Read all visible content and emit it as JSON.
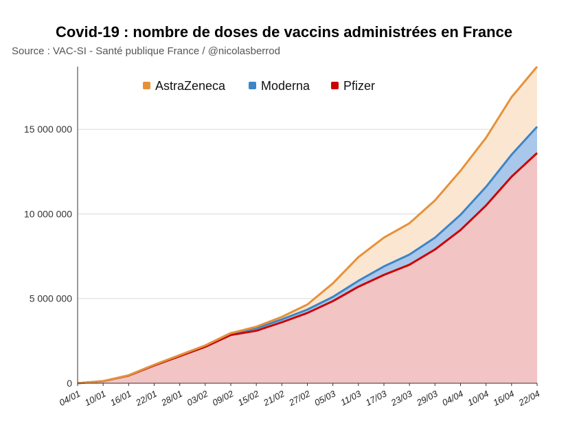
{
  "chart_data": {
    "type": "area",
    "title": "Covid-19 : nombre de doses de vaccins administrées en France",
    "subtitle": "Source : VAC-SI - Santé publique France / @nicolasberrod",
    "xlabel": "",
    "ylabel": "",
    "stacked": true,
    "ylim": [
      0,
      18700000
    ],
    "y_ticks": [
      0,
      5000000,
      10000000,
      15000000
    ],
    "y_tick_labels": [
      "0",
      "5 000 000",
      "10 000 000",
      "15 000 000"
    ],
    "categories": [
      "04/01",
      "10/01",
      "16/01",
      "22/01",
      "28/01",
      "03/02",
      "09/02",
      "15/02",
      "21/02",
      "27/02",
      "05/03",
      "11/03",
      "17/03",
      "23/03",
      "29/03",
      "04/04",
      "10/04",
      "16/04",
      "22/04"
    ],
    "legend_position": "top-left",
    "series": [
      {
        "name": "Pfizer",
        "color": "#cc0000",
        "fill": "#f2c4c4",
        "values": [
          0,
          120000,
          450000,
          1050000,
          1600000,
          2150000,
          2850000,
          3100000,
          3600000,
          4150000,
          4850000,
          5700000,
          6400000,
          7000000,
          7900000,
          9050000,
          10500000,
          12200000,
          13600000
        ]
      },
      {
        "name": "Moderna",
        "color": "#3d85c6",
        "fill": "#a9c7ea",
        "values": [
          0,
          5000,
          20000,
          40000,
          60000,
          80000,
          110000,
          140000,
          170000,
          200000,
          250000,
          350000,
          500000,
          600000,
          700000,
          900000,
          1100000,
          1300000,
          1550000
        ]
      },
      {
        "name": "AstraZeneca",
        "color": "#e69138",
        "fill": "#fbe6d1",
        "values": [
          0,
          0,
          0,
          0,
          0,
          0,
          0,
          100000,
          150000,
          300000,
          800000,
          1400000,
          1700000,
          1850000,
          2200000,
          2600000,
          2900000,
          3400000,
          3550000
        ]
      }
    ]
  }
}
